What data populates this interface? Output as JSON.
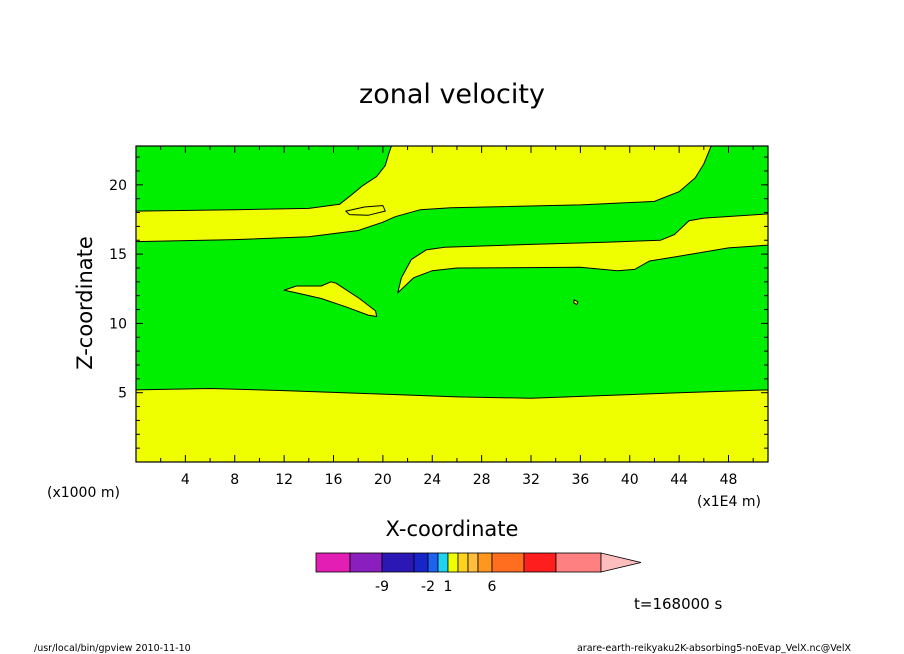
{
  "chart_data": {
    "type": "heatmap",
    "title": "zonal velocity",
    "xlabel": "X-coordinate",
    "ylabel": "Z-coordinate",
    "x_unit": "(x1E4 m)",
    "y_unit": "(x1000 m)",
    "xlim": [
      0,
      51.2
    ],
    "ylim": [
      0,
      22.8
    ],
    "xticks": [
      "4",
      "8",
      "12",
      "16",
      "20",
      "24",
      "28",
      "32",
      "36",
      "40",
      "44",
      "48"
    ],
    "yticks": [
      "5",
      "10",
      "15",
      "20"
    ],
    "background_class_color": "#00ee00",
    "regions": [
      {
        "name": "lower-band",
        "color": "#f0ff00",
        "points": [
          [
            0,
            0
          ],
          [
            51.2,
            0
          ],
          [
            51.2,
            5.2
          ],
          [
            44,
            5
          ],
          [
            38,
            4.8
          ],
          [
            32,
            4.6
          ],
          [
            26,
            4.7
          ],
          [
            20,
            4.9
          ],
          [
            12,
            5.15
          ],
          [
            6,
            5.3
          ],
          [
            0,
            5.2
          ]
        ]
      },
      {
        "name": "middle-band",
        "color": "#f0ff00",
        "points": [
          [
            0,
            15.9
          ],
          [
            8,
            16.05
          ],
          [
            14,
            16.25
          ],
          [
            18,
            16.7
          ],
          [
            20,
            17.3
          ],
          [
            21,
            17.7
          ],
          [
            23,
            18.2
          ],
          [
            25.5,
            18.35
          ],
          [
            36,
            18.55
          ],
          [
            42,
            18.8
          ],
          [
            44,
            19.5
          ],
          [
            45.3,
            20.5
          ],
          [
            46,
            21.5
          ],
          [
            46.6,
            22.8
          ],
          [
            20.7,
            22.8
          ],
          [
            20.5,
            22.3
          ],
          [
            20.2,
            21.4
          ],
          [
            19.5,
            20.6
          ],
          [
            18.3,
            19.9
          ],
          [
            17.5,
            19.3
          ],
          [
            16.5,
            18.6
          ],
          [
            14,
            18.3
          ],
          [
            8,
            18.2
          ],
          [
            0,
            18.1
          ]
        ]
      },
      {
        "name": "lens-upper",
        "color": "#f0ff00",
        "points": [
          [
            17,
            18.1
          ],
          [
            18.5,
            18.4
          ],
          [
            20,
            18.5
          ],
          [
            20.2,
            18.1
          ],
          [
            18.8,
            17.8
          ],
          [
            17.3,
            17.85
          ]
        ]
      },
      {
        "name": "upper-right-band",
        "color": "#f0ff00",
        "points": [
          [
            21.2,
            12.2
          ],
          [
            22.5,
            13.3
          ],
          [
            24,
            13.8
          ],
          [
            26,
            14.0
          ],
          [
            36,
            14.05
          ],
          [
            39,
            13.8
          ],
          [
            40.4,
            13.9
          ],
          [
            41.6,
            14.5
          ],
          [
            43,
            14.7
          ],
          [
            48,
            15.45
          ],
          [
            51.2,
            15.65
          ],
          [
            51.2,
            17.9
          ],
          [
            46,
            17.6
          ],
          [
            44.8,
            17.4
          ],
          [
            43.6,
            16.4
          ],
          [
            42.5,
            16.0
          ],
          [
            38,
            15.85
          ],
          [
            32,
            15.7
          ],
          [
            25,
            15.5
          ],
          [
            23.5,
            15.3
          ],
          [
            22.3,
            14.6
          ],
          [
            21.5,
            13.3
          ]
        ]
      },
      {
        "name": "lens-left",
        "color": "#f0ff00",
        "points": [
          [
            12,
            12.4
          ],
          [
            13,
            12.7
          ],
          [
            15,
            12.7
          ],
          [
            15.8,
            13.0
          ],
          [
            16.2,
            12.9
          ],
          [
            18.1,
            11.8
          ],
          [
            19.4,
            10.9
          ],
          [
            19.5,
            10.5
          ],
          [
            18.8,
            10.6
          ],
          [
            17,
            11.2
          ],
          [
            15,
            11.8
          ],
          [
            13.5,
            12.1
          ]
        ]
      },
      {
        "name": "small-dot",
        "color": "#f0ff00",
        "points": [
          [
            35.5,
            11.7
          ],
          [
            35.8,
            11.55
          ],
          [
            35.7,
            11.35
          ],
          [
            35.45,
            11.5
          ]
        ]
      }
    ],
    "colorbar": {
      "colors": [
        "#e31eb4",
        "#8a1ebe",
        "#2a17b4",
        "#1624c8",
        "#1e62f0",
        "#1ed2f0",
        "#f0ff00",
        "#ffd21e",
        "#ffbe3c",
        "#ff961e",
        "#ff6e1e",
        "#ff1e1e",
        "#ff8080"
      ],
      "widths": [
        34,
        32,
        32,
        14,
        10,
        10,
        10,
        10,
        10,
        14,
        32,
        32,
        45
      ],
      "extend_color": "#ffbebe",
      "labels": [
        {
          "text": "-9",
          "at_boundary": 2
        },
        {
          "text": "-2",
          "at_boundary": 4
        },
        {
          "text": "1",
          "at_boundary": 6
        },
        {
          "text": "6",
          "at_boundary": 10
        }
      ]
    }
  },
  "time_label": "t=168000 s",
  "footer_left": "/usr/local/bin/gpview   2010-11-10",
  "footer_right": "arare-earth-reikyaku2K-absorbing5-noEvap_VelX.nc@VelX"
}
